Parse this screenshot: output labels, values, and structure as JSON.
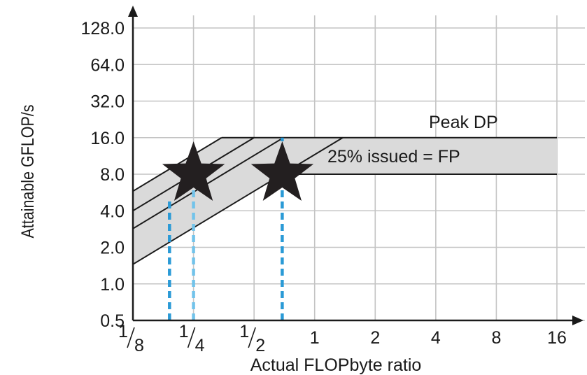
{
  "chart_data": {
    "type": "line",
    "xscale": "log2",
    "yscale": "log2",
    "xlabel": "Actual FLOPbyte ratio",
    "ylabel": "Attainable GFLOP/s",
    "xlim": [
      0.125,
      16
    ],
    "ylim": [
      0.5,
      128
    ],
    "x_ticks": [
      {
        "value": 0.125,
        "num": "1",
        "den": "8"
      },
      {
        "value": 0.25,
        "num": "1",
        "den": "4"
      },
      {
        "value": 0.5,
        "num": "1",
        "den": "2"
      },
      {
        "value": 1,
        "label": "1"
      },
      {
        "value": 2,
        "label": "2"
      },
      {
        "value": 4,
        "label": "4"
      },
      {
        "value": 8,
        "label": "8"
      },
      {
        "value": 16,
        "label": "16"
      }
    ],
    "y_ticks": [
      {
        "value": 0.5,
        "label": "0.5"
      },
      {
        "value": 1,
        "label": "1.0"
      },
      {
        "value": 2,
        "label": "2.0"
      },
      {
        "value": 4,
        "label": "4.0"
      },
      {
        "value": 8,
        "label": "8.0"
      },
      {
        "value": 16,
        "label": "16.0"
      },
      {
        "value": 32,
        "label": "32.0"
      },
      {
        "value": 64,
        "label": "64.0"
      },
      {
        "value": 128,
        "label": "128.0"
      }
    ],
    "grid": true,
    "ceilings": [
      {
        "label": "Peak DP",
        "y": 16
      },
      {
        "label": "25% issued = FP",
        "y": 8
      }
    ],
    "bandwidth_lines": [
      {
        "x_start": 0.125,
        "y_start": 5.8,
        "x_end": 0.345,
        "y_end": 16
      },
      {
        "x_start": 0.125,
        "y_start": 4.0,
        "x_end": 0.5,
        "y_end": 16
      },
      {
        "x_start": 0.125,
        "y_start": 2.85,
        "x_end": 0.7,
        "y_end": 16
      },
      {
        "x_start": 0.125,
        "y_start": 1.45,
        "x_end": 1.38,
        "y_end": 16
      }
    ],
    "shaded_region_top": [
      [
        0.125,
        5.8
      ],
      [
        0.345,
        16
      ],
      [
        1.38,
        16
      ],
      [
        16,
        16
      ]
    ],
    "shaded_region_bottom": [
      [
        0.125,
        1.45
      ],
      [
        0.69,
        8
      ],
      [
        16,
        8
      ]
    ],
    "points": [
      {
        "x": 0.25,
        "y": 8
      },
      {
        "x": 0.69,
        "y": 8
      }
    ],
    "dashed_lines": [
      {
        "x": 0.19,
        "y_top": 5.0,
        "color": "#2a9ad6"
      },
      {
        "x": 0.25,
        "y_top": 8,
        "color": "#72c3ea"
      },
      {
        "x": 0.69,
        "y_top": 16,
        "color": "#2a9ad6"
      }
    ],
    "colors": {
      "band_fill": "#dadada",
      "grid": "#c4c4c4",
      "lines": "#1a1a1a",
      "star": "#231f20"
    }
  }
}
